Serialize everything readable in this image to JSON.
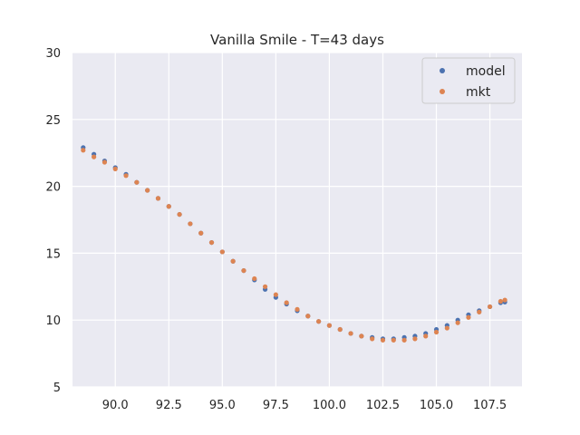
{
  "chart_data": {
    "type": "scatter",
    "title": "Vanilla Smile - T=43 days",
    "xlabel": "",
    "ylabel": "",
    "xlim": [
      88.0,
      109.0
    ],
    "ylim": [
      5,
      30
    ],
    "x_ticks": [
      90.0,
      92.5,
      95.0,
      97.5,
      100.0,
      102.5,
      105.0,
      107.5
    ],
    "x_tick_labels": [
      "90.0",
      "92.5",
      "95.0",
      "97.5",
      "100.0",
      "102.5",
      "105.0",
      "107.5"
    ],
    "y_ticks": [
      5,
      10,
      15,
      20,
      25,
      30
    ],
    "y_tick_labels": [
      "5",
      "10",
      "15",
      "20",
      "25",
      "30"
    ],
    "grid": true,
    "legend_position": "top-right",
    "series": [
      {
        "name": "model",
        "color": "#4c72b0",
        "x": [
          88.5,
          89.0,
          89.5,
          90.0,
          90.5,
          91.0,
          91.5,
          92.0,
          92.5,
          93.0,
          93.5,
          94.0,
          94.5,
          95.0,
          95.5,
          96.0,
          96.5,
          97.0,
          97.5,
          98.0,
          98.5,
          99.0,
          99.5,
          100.0,
          100.5,
          101.0,
          101.5,
          102.0,
          102.5,
          103.0,
          103.5,
          104.0,
          104.5,
          105.0,
          105.5,
          106.0,
          106.5,
          107.0,
          107.5,
          108.0,
          108.2
        ],
        "y": [
          22.9,
          22.4,
          21.9,
          21.4,
          20.9,
          20.3,
          19.7,
          19.1,
          18.5,
          17.9,
          17.2,
          16.5,
          15.8,
          15.1,
          14.4,
          13.7,
          13.0,
          12.3,
          11.7,
          11.2,
          10.7,
          10.3,
          9.9,
          9.6,
          9.3,
          9.0,
          8.8,
          8.7,
          8.6,
          8.6,
          8.7,
          8.8,
          9.0,
          9.3,
          9.6,
          10.0,
          10.4,
          10.7,
          11.0,
          11.3,
          11.35
        ]
      },
      {
        "name": "mkt",
        "color": "#dd8452",
        "x": [
          88.5,
          89.0,
          89.5,
          90.0,
          90.5,
          91.0,
          91.5,
          92.0,
          92.5,
          93.0,
          93.5,
          94.0,
          94.5,
          95.0,
          95.5,
          96.0,
          96.5,
          97.0,
          97.5,
          98.0,
          98.5,
          99.0,
          99.5,
          100.0,
          100.5,
          101.0,
          101.5,
          102.0,
          102.5,
          103.0,
          103.5,
          104.0,
          104.5,
          105.0,
          105.5,
          106.0,
          106.5,
          107.0,
          107.5,
          108.0,
          108.2
        ],
        "y": [
          22.7,
          22.2,
          21.8,
          21.3,
          20.8,
          20.3,
          19.7,
          19.1,
          18.5,
          17.9,
          17.2,
          16.5,
          15.8,
          15.1,
          14.4,
          13.7,
          13.1,
          12.5,
          11.9,
          11.3,
          10.8,
          10.3,
          9.9,
          9.6,
          9.3,
          9.0,
          8.8,
          8.6,
          8.5,
          8.5,
          8.5,
          8.6,
          8.8,
          9.1,
          9.4,
          9.8,
          10.2,
          10.6,
          11.0,
          11.4,
          11.5
        ]
      }
    ]
  }
}
